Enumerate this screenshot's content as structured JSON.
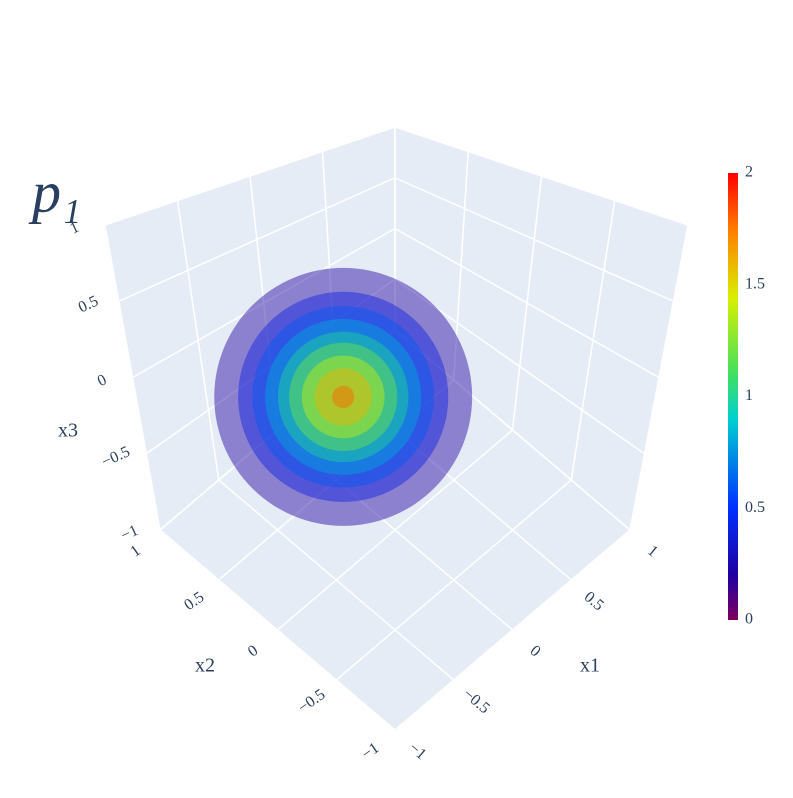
{
  "chart_data": {
    "type": "isosurface",
    "title": "p₁",
    "x1_title": "x1",
    "x2_title": "x2",
    "x3_title": "x3",
    "x1lim": [
      -1,
      1
    ],
    "x2lim": [
      -1,
      1
    ],
    "x3lim": [
      -1,
      1
    ],
    "x1ticks": [
      {
        "value": -1,
        "label": "−1"
      },
      {
        "value": -0.5,
        "label": "−0.5"
      },
      0,
      0.5,
      1
    ],
    "x2ticks": [
      {
        "value": -1,
        "label": "−1"
      },
      {
        "value": -0.5,
        "label": "−0.5"
      },
      0,
      0.5,
      1
    ],
    "x3ticks": [
      {
        "value": -1,
        "label": "−1"
      },
      {
        "value": -0.5,
        "label": "−0.5"
      },
      0,
      0.5,
      1
    ],
    "isosurfaces": {
      "center": [
        -0.33,
        0.07,
        0
      ],
      "values": [
        0.2,
        0.4,
        0.6,
        0.8,
        1.0,
        1.2,
        1.4,
        1.6,
        1.8
      ],
      "radii": [
        0.81,
        0.66,
        0.57,
        0.49,
        0.41,
        0.34,
        0.26,
        0.18,
        0.07
      ]
    },
    "opacity": 0.45,
    "colorscale": [
      [
        0,
        "#800060"
      ],
      [
        0.1,
        "#2000a0"
      ],
      [
        0.25,
        "#0030ff"
      ],
      [
        0.45,
        "#00d0d0"
      ],
      [
        0.55,
        "#40e060"
      ],
      [
        0.72,
        "#d8f000"
      ],
      [
        0.87,
        "#ff8000"
      ],
      [
        1,
        "#ff0000"
      ]
    ],
    "colorbar_lim": [
      0,
      2
    ],
    "colorbar_ticks": [
      0,
      0.5,
      1,
      1.5,
      2
    ],
    "grid": true
  }
}
